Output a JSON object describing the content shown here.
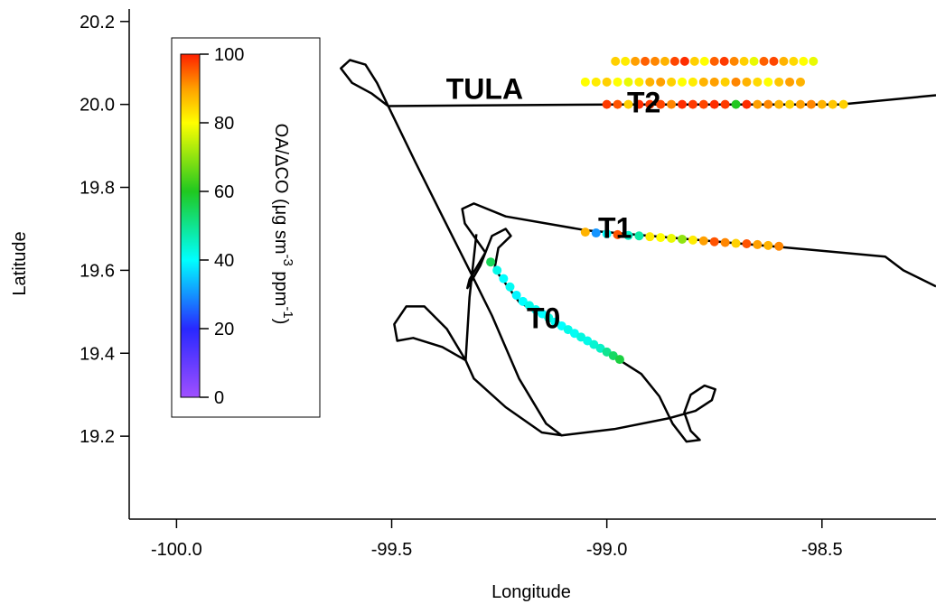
{
  "chart_data": {
    "type": "scatter",
    "xlabel": "Longitude",
    "ylabel": "Latitude",
    "xlim": [
      -100.11,
      -98.235
    ],
    "ylim": [
      19.0,
      20.23
    ],
    "xticks": [
      {
        "value": -100,
        "label": "-100.0"
      },
      -99.5,
      {
        "value": -99,
        "label": "-99.0"
      },
      -98.5
    ],
    "yticks": [
      {
        "value": 19.2,
        "label": "19.2"
      },
      {
        "value": 19.4,
        "label": "19.4"
      },
      {
        "value": 19.6,
        "label": "19.6"
      },
      {
        "value": 19.8,
        "label": "19.8"
      },
      {
        "value": 20.0,
        "label": "20.0"
      },
      {
        "value": 20.2,
        "label": "20.2"
      }
    ],
    "grid": false,
    "track": {
      "color": "#000000",
      "x": [
        -98.235,
        -98.458,
        -98.983,
        -99.508,
        -99.546,
        -99.592,
        -99.618,
        -99.597,
        -99.561,
        -99.534,
        -99.508,
        -99.445,
        -99.382,
        -99.319,
        -99.267,
        -99.204,
        -99.141,
        -99.105,
        -98.983,
        -98.857,
        -98.794,
        -98.756,
        -98.748,
        -98.773,
        -98.805,
        -98.82,
        -98.805,
        -98.784,
        -98.815,
        -98.847,
        -98.878,
        -98.92,
        -98.962,
        null,
        -98.962,
        -99.109,
        -99.204,
        -99.261,
        -99.252,
        -99.223,
        -99.235,
        -99.267,
        -99.294,
        -99.324,
        -99.319,
        -99.282,
        -99.33,
        -99.336,
        -99.309,
        -99.235,
        -99.046,
        -98.605,
        -98.353,
        -98.311,
        -98.235,
        null,
        -99.303,
        -99.319,
        -99.328,
        -99.309,
        -99.235,
        -99.151,
        -99.105,
        null,
        -99.328,
        -99.372,
        -99.424,
        -99.466,
        -99.494,
        -99.487,
        -99.45,
        -99.382,
        -99.328
      ],
      "y": [
        20.022,
        20.0,
        20.0,
        19.996,
        20.026,
        20.052,
        20.087,
        20.107,
        20.096,
        20.052,
        19.996,
        19.861,
        19.73,
        19.6,
        19.491,
        19.339,
        19.23,
        19.202,
        19.217,
        19.243,
        19.261,
        19.287,
        19.313,
        19.322,
        19.3,
        19.257,
        19.213,
        19.191,
        19.187,
        19.23,
        19.296,
        19.35,
        19.378,
        null,
        19.378,
        19.465,
        19.524,
        19.604,
        19.654,
        19.683,
        19.7,
        19.683,
        19.611,
        19.557,
        19.578,
        19.643,
        19.713,
        19.748,
        19.761,
        19.73,
        19.696,
        19.657,
        19.633,
        19.6,
        19.561,
        null,
        19.687,
        19.535,
        19.383,
        19.339,
        19.27,
        19.209,
        19.202,
        null,
        19.383,
        19.459,
        19.513,
        19.513,
        19.47,
        19.43,
        19.437,
        19.415,
        19.383
      ]
    },
    "points": {
      "x": [
        -98.98,
        -98.957,
        -98.934,
        -98.911,
        -98.888,
        -98.865,
        -98.842,
        -98.819,
        -98.796,
        -98.773,
        -98.75,
        -98.727,
        -98.704,
        -98.681,
        -98.658,
        -98.635,
        -98.612,
        -98.589,
        -98.566,
        -98.543,
        -98.52,
        -99.05,
        -99.025,
        -99.0,
        -98.975,
        -98.95,
        -98.925,
        -98.9,
        -98.875,
        -98.85,
        -98.825,
        -98.8,
        -98.775,
        -98.75,
        -98.725,
        -98.7,
        -98.675,
        -98.65,
        -98.625,
        -98.6,
        -98.575,
        -98.55,
        -99.0,
        -98.975,
        -98.95,
        -98.925,
        -98.9,
        -98.875,
        -98.85,
        -98.825,
        -98.8,
        -98.775,
        -98.75,
        -98.725,
        -98.7,
        -98.675,
        -98.65,
        -98.625,
        -98.6,
        -98.575,
        -98.55,
        -98.525,
        -98.5,
        -98.475,
        -98.45,
        -99.05,
        -99.025,
        -99.0,
        -98.975,
        -98.95,
        -98.925,
        -98.9,
        -98.875,
        -98.85,
        -98.825,
        -98.8,
        -98.775,
        -98.75,
        -98.725,
        -98.7,
        -98.675,
        -98.65,
        -98.625,
        -98.6,
        -99.27,
        -99.255,
        -99.24,
        -99.225,
        -99.21,
        -99.195,
        -99.18,
        -99.165,
        -99.15,
        -99.135,
        -99.12,
        -99.105,
        -99.09,
        -99.075,
        -99.06,
        -99.045,
        -99.03,
        -99.015,
        -99.0,
        -98.985,
        -98.97
      ],
      "y": [
        20.104,
        20.104,
        20.104,
        20.104,
        20.104,
        20.104,
        20.104,
        20.104,
        20.104,
        20.104,
        20.104,
        20.104,
        20.104,
        20.104,
        20.104,
        20.104,
        20.104,
        20.104,
        20.104,
        20.104,
        20.104,
        20.054,
        20.054,
        20.054,
        20.054,
        20.054,
        20.054,
        20.054,
        20.054,
        20.054,
        20.054,
        20.054,
        20.054,
        20.054,
        20.054,
        20.054,
        20.054,
        20.054,
        20.054,
        20.054,
        20.054,
        20.054,
        20.0,
        20.0,
        20.0,
        20.0,
        20.0,
        20.0,
        20.0,
        20.0,
        20.0,
        20.0,
        20.0,
        20.0,
        20.0,
        20.0,
        20.0,
        20.0,
        20.0,
        20.0,
        20.0,
        20.0,
        20.0,
        20.0,
        20.0,
        19.692,
        19.69,
        19.688,
        19.686,
        19.684,
        19.683,
        19.681,
        19.679,
        19.677,
        19.675,
        19.673,
        19.671,
        19.669,
        19.667,
        19.665,
        19.664,
        19.662,
        19.66,
        19.658,
        19.62,
        19.6,
        19.58,
        19.56,
        19.54,
        19.525,
        19.515,
        19.505,
        19.495,
        19.485,
        19.475,
        19.466,
        19.457,
        19.448,
        19.439,
        19.43,
        19.421,
        19.412,
        19.403,
        19.394,
        19.385
      ],
      "values": [
        85,
        82,
        90,
        95,
        92,
        88,
        97,
        99,
        85,
        80,
        95,
        98,
        92,
        85,
        78,
        95,
        97,
        88,
        84,
        80,
        78,
        80,
        82,
        85,
        80,
        78,
        82,
        88,
        90,
        85,
        80,
        82,
        88,
        90,
        85,
        92,
        88,
        84,
        80,
        86,
        90,
        88,
        98,
        96,
        85,
        99,
        98,
        97,
        92,
        99,
        98,
        97,
        99,
        98,
        60,
        99,
        90,
        92,
        88,
        85,
        90,
        92,
        88,
        86,
        85,
        88,
        30,
        40,
        96,
        45,
        48,
        82,
        80,
        78,
        70,
        82,
        90,
        96,
        92,
        85,
        96,
        90,
        88,
        92,
        55,
        42,
        40,
        41,
        39,
        40,
        42,
        41,
        40,
        43,
        41,
        40,
        42,
        41,
        43,
        42,
        44,
        45,
        50,
        54,
        57
      ]
    },
    "colorbar": {
      "label": [
        "OA/ΔCO (μg sm",
        "-3",
        " ppm",
        "-1",
        ")"
      ],
      "clim": [
        0,
        100
      ],
      "cticks": [
        0,
        20,
        40,
        60,
        80,
        100
      ],
      "colorscale": [
        [
          0,
          "#a050ff"
        ],
        [
          20,
          "#2828ff"
        ],
        [
          40,
          "#00ffff"
        ],
        [
          60,
          "#20c820"
        ],
        [
          80,
          "#ffff00"
        ],
        [
          90,
          "#ffa000"
        ],
        [
          100,
          "#ff2000"
        ]
      ]
    },
    "annotations": [
      {
        "text": "TULA",
        "x": -99.284,
        "y": 20.039
      },
      {
        "text": "T2",
        "x": -98.914,
        "y": 20.007
      },
      {
        "text": "T1",
        "x": -98.981,
        "y": 19.704
      },
      {
        "text": "T0",
        "x": -99.147,
        "y": 19.487
      }
    ]
  }
}
